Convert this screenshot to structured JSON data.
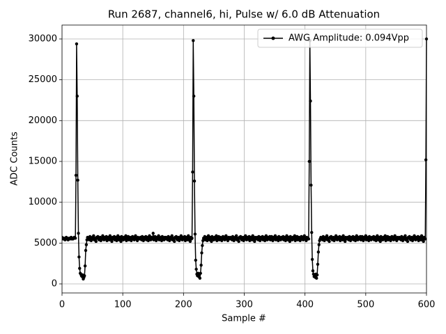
{
  "chart_data": {
    "type": "line",
    "title": "Run 2687, channel6, hi, Pulse w/ 6.0 dB Attenuation",
    "xlabel": "Sample #",
    "ylabel": "ADC Counts",
    "xlim": [
      0,
      600
    ],
    "ylim": [
      -1108,
      31704
    ],
    "xticks": [
      0,
      100,
      200,
      300,
      400,
      500,
      600
    ],
    "yticks": [
      0,
      5000,
      10000,
      15000,
      20000,
      25000,
      30000
    ],
    "grid": true,
    "legend": "upper right",
    "x": [
      0,
      1,
      2,
      3,
      4,
      5,
      6,
      7,
      8,
      9,
      10,
      11,
      12,
      13,
      14,
      15,
      16,
      17,
      18,
      19,
      20,
      21,
      22,
      23,
      24,
      25,
      26,
      27,
      28,
      29,
      30,
      31,
      32,
      33,
      34,
      35,
      36,
      37,
      38,
      39,
      40,
      41,
      42,
      43,
      44,
      45,
      46,
      47,
      48,
      49,
      50,
      51,
      52,
      53,
      54,
      55,
      56,
      57,
      58,
      59,
      60,
      61,
      62,
      63,
      64,
      65,
      66,
      67,
      68,
      69,
      70,
      71,
      72,
      73,
      74,
      75,
      76,
      77,
      78,
      79,
      80,
      81,
      82,
      83,
      84,
      85,
      86,
      87,
      88,
      89,
      90,
      91,
      92,
      93,
      94,
      95,
      96,
      97,
      98,
      99,
      100,
      101,
      102,
      103,
      104,
      105,
      106,
      107,
      108,
      109,
      110,
      111,
      112,
      113,
      114,
      115,
      116,
      117,
      118,
      119,
      120,
      121,
      122,
      123,
      124,
      125,
      126,
      127,
      128,
      129,
      130,
      131,
      132,
      133,
      134,
      135,
      136,
      137,
      138,
      139,
      140,
      141,
      142,
      143,
      144,
      145,
      146,
      147,
      148,
      149,
      150,
      151,
      152,
      153,
      154,
      155,
      156,
      157,
      158,
      159,
      160,
      161,
      162,
      163,
      164,
      165,
      166,
      167,
      168,
      169,
      170,
      171,
      172,
      173,
      174,
      175,
      176,
      177,
      178,
      179,
      180,
      181,
      182,
      183,
      184,
      185,
      186,
      187,
      188,
      189,
      190,
      191,
      192,
      193,
      194,
      195,
      196,
      197,
      198,
      199,
      200,
      201,
      202,
      203,
      204,
      205,
      206,
      207,
      208,
      209,
      210,
      211,
      212,
      213,
      214,
      215,
      216,
      217,
      218,
      219,
      220,
      221,
      222,
      223,
      224,
      225,
      226,
      227,
      228,
      229,
      230,
      231,
      232,
      233,
      234,
      235,
      236,
      237,
      238,
      239,
      240,
      241,
      242,
      243,
      244,
      245,
      246,
      247,
      248,
      249,
      250,
      251,
      252,
      253,
      254,
      255,
      256,
      257,
      258,
      259,
      260,
      261,
      262,
      263,
      264,
      265,
      266,
      267,
      268,
      269,
      270,
      271,
      272,
      273,
      274,
      275,
      276,
      277,
      278,
      279,
      280,
      281,
      282,
      283,
      284,
      285,
      286,
      287,
      288,
      289,
      290,
      291,
      292,
      293,
      294,
      295,
      296,
      297,
      298,
      299,
      300,
      301,
      302,
      303,
      304,
      305,
      306,
      307,
      308,
      309,
      310,
      311,
      312,
      313,
      314,
      315,
      316,
      317,
      318,
      319,
      320,
      321,
      322,
      323,
      324,
      325,
      326,
      327,
      328,
      329,
      330,
      331,
      332,
      333,
      334,
      335,
      336,
      337,
      338,
      339,
      340,
      341,
      342,
      343,
      344,
      345,
      346,
      347,
      348,
      349,
      350,
      351,
      352,
      353,
      354,
      355,
      356,
      357,
      358,
      359,
      360,
      361,
      362,
      363,
      364,
      365,
      366,
      367,
      368,
      369,
      370,
      371,
      372,
      373,
      374,
      375,
      376,
      377,
      378,
      379,
      380,
      381,
      382,
      383,
      384,
      385,
      386,
      387,
      388,
      389,
      390,
      391,
      392,
      393,
      394,
      395,
      396,
      397,
      398,
      399,
      400,
      401,
      402,
      403,
      404,
      405,
      406,
      407,
      408,
      409,
      410,
      411,
      412,
      413,
      414,
      415,
      416,
      417,
      418,
      419,
      420,
      421,
      422,
      423,
      424,
      425,
      426,
      427,
      428,
      429,
      430,
      431,
      432,
      433,
      434,
      435,
      436,
      437,
      438,
      439,
      440,
      441,
      442,
      443,
      444,
      445,
      446,
      447,
      448,
      449,
      450,
      451,
      452,
      453,
      454,
      455,
      456,
      457,
      458,
      459,
      460,
      461,
      462,
      463,
      464,
      465,
      466,
      467,
      468,
      469,
      470,
      471,
      472,
      473,
      474,
      475,
      476,
      477,
      478,
      479,
      480,
      481,
      482,
      483,
      484,
      485,
      486,
      487,
      488,
      489,
      490,
      491,
      492,
      493,
      494,
      495,
      496,
      497,
      498,
      499,
      500,
      501,
      502,
      503,
      504,
      505,
      506,
      507,
      508,
      509,
      510,
      511,
      512,
      513,
      514,
      515,
      516,
      517,
      518,
      519,
      520,
      521,
      522,
      523,
      524,
      525,
      526,
      527,
      528,
      529,
      530,
      531,
      532,
      533,
      534,
      535,
      536,
      537,
      538,
      539,
      540,
      541,
      542,
      543,
      544,
      545,
      546,
      547,
      548,
      549,
      550,
      551,
      552,
      553,
      554,
      555,
      556,
      557,
      558,
      559,
      560,
      561,
      562,
      563,
      564,
      565,
      566,
      567,
      568,
      569,
      570,
      571,
      572,
      573,
      574,
      575,
      576,
      577,
      578,
      579,
      580,
      581,
      582,
      583,
      584,
      585,
      586,
      587,
      588,
      589,
      590,
      591,
      592,
      593,
      594,
      595,
      596,
      597,
      598,
      599,
      600
    ],
    "series": [
      {
        "name": "AWG Amplitude: 0.094Vpp",
        "color": "#000000",
        "values": [
          5700,
          5600,
          5500,
          5600,
          5500,
          5400,
          5600,
          5700,
          5500,
          5600,
          5400,
          5500,
          5600,
          5500,
          5600,
          5700,
          5500,
          5600,
          5500,
          5600,
          5700,
          5600,
          5600,
          13300,
          29400,
          23000,
          12700,
          6200,
          3300,
          1900,
          1300,
          1200,
          1000,
          900,
          1100,
          600,
          800,
          1000,
          2200,
          4100,
          4800,
          5400,
          5700,
          5500,
          5600,
          5400,
          5800,
          5500,
          5300,
          5600,
          5700,
          5500,
          5900,
          5400,
          5600,
          5500,
          5200,
          5700,
          5600,
          5800,
          5500,
          5400,
          5600,
          5700,
          5300,
          5600,
          5500,
          5900,
          5600,
          5400,
          5700,
          5500,
          5600,
          5800,
          5300,
          5500,
          5700,
          5600,
          5400,
          5900,
          5500,
          5600,
          5200,
          5700,
          5500,
          5600,
          5800,
          5400,
          5500,
          5700,
          5300,
          5600,
          5900,
          5500,
          5400,
          5700,
          5600,
          5200,
          5800,
          5500,
          5600,
          5400,
          5700,
          5600,
          5500,
          5900,
          5300,
          5600,
          5500,
          5800,
          5400,
          5600,
          5700,
          5500,
          5300,
          5600,
          5800,
          5500,
          5700,
          5400,
          5600,
          5900,
          5500,
          5600,
          5300,
          5700,
          5500,
          5600,
          5500,
          5700,
          5600,
          5400,
          5800,
          5500,
          5300,
          5700,
          5600,
          5500,
          5800,
          5400,
          5600,
          5700,
          5300,
          5500,
          5900,
          5600,
          5400,
          5700,
          5500,
          5600,
          6200,
          5400,
          5500,
          5800,
          5600,
          5300,
          5700,
          5500,
          5600,
          5900,
          5400,
          5600,
          5500,
          5700,
          5300,
          5800,
          5600,
          5500,
          5400,
          5700,
          5600,
          5700,
          5500,
          5600,
          5400,
          5800,
          5500,
          5300,
          5600,
          5700,
          5500,
          5900,
          5400,
          5600,
          5500,
          5200,
          5700,
          5600,
          5800,
          5500,
          5400,
          5600,
          5700,
          5300,
          5600,
          5500,
          5900,
          5600,
          5400,
          5700,
          5500,
          5600,
          5800,
          5300,
          5500,
          5700,
          5600,
          5400,
          5900,
          5500,
          5600,
          5200,
          5700,
          5500,
          5600,
          13700,
          29800,
          23000,
          12600,
          6100,
          2900,
          1800,
          1200,
          1000,
          1300,
          900,
          1200,
          700,
          1300,
          2300,
          3800,
          4700,
          5300,
          5600,
          5600,
          5800,
          5400,
          5500,
          5700,
          5300,
          5600,
          5900,
          5500,
          5400,
          5700,
          5600,
          5200,
          5800,
          5500,
          5600,
          5400,
          5700,
          5600,
          5500,
          5900,
          5300,
          5600,
          5500,
          5800,
          5400,
          5600,
          5700,
          5500,
          5300,
          5600,
          5800,
          5500,
          5700,
          5400,
          5600,
          5900,
          5500,
          5600,
          5300,
          5700,
          5500,
          5600,
          5700,
          5500,
          5600,
          5400,
          5800,
          5500,
          5300,
          5600,
          5700,
          5500,
          5900,
          5400,
          5600,
          5500,
          5200,
          5700,
          5600,
          5800,
          5500,
          5400,
          5600,
          5700,
          5300,
          5600,
          5500,
          5900,
          5600,
          5400,
          5700,
          5500,
          5600,
          5800,
          5300,
          5500,
          5700,
          5600,
          5400,
          5900,
          5500,
          5600,
          5200,
          5700,
          5500,
          5500,
          5700,
          5600,
          5400,
          5800,
          5500,
          5300,
          5700,
          5600,
          5500,
          5800,
          5400,
          5600,
          5700,
          5300,
          5500,
          5900,
          5600,
          5400,
          5700,
          5500,
          5600,
          5800,
          5400,
          5500,
          5800,
          5600,
          5300,
          5700,
          5500,
          5600,
          5900,
          5400,
          5600,
          5500,
          5700,
          5300,
          5800,
          5600,
          5500,
          5400,
          5700,
          5600,
          5600,
          5800,
          5400,
          5500,
          5700,
          5300,
          5600,
          5900,
          5500,
          5400,
          5700,
          5600,
          5200,
          5800,
          5500,
          5600,
          5400,
          5700,
          5600,
          5500,
          5900,
          5300,
          5600,
          5500,
          5800,
          5400,
          5600,
          5700,
          5500,
          5300,
          5600,
          5800,
          5500,
          5700,
          5400,
          5600,
          5900,
          5500,
          5600,
          5300,
          5700,
          5500,
          5600,
          5500,
          15000,
          29800,
          22400,
          12100,
          6300,
          3000,
          1600,
          1200,
          900,
          1100,
          800,
          1200,
          700,
          1100,
          2400,
          3900,
          4800,
          5300,
          5500,
          5700,
          5500,
          5600,
          5400,
          5800,
          5500,
          5300,
          5600,
          5700,
          5500,
          5900,
          5400,
          5600,
          5500,
          5200,
          5700,
          5600,
          5800,
          5500,
          5400,
          5600,
          5700,
          5300,
          5600,
          5500,
          5900,
          5600,
          5400,
          5700,
          5500,
          5600,
          5800,
          5300,
          5500,
          5700,
          5600,
          5400,
          5900,
          5500,
          5600,
          5200,
          5700,
          5500,
          5500,
          5700,
          5600,
          5400,
          5800,
          5500,
          5300,
          5700,
          5600,
          5500,
          5800,
          5400,
          5600,
          5700,
          5300,
          5500,
          5900,
          5600,
          5400,
          5700,
          5500,
          5600,
          5800,
          5400,
          5500,
          5800,
          5600,
          5300,
          5700,
          5500,
          5600,
          5900,
          5400,
          5600,
          5500,
          5700,
          5300,
          5800,
          5600,
          5500,
          5400,
          5700,
          5600,
          5600,
          5800,
          5400,
          5500,
          5700,
          5300,
          5600,
          5900,
          5500,
          5400,
          5700,
          5600,
          5200,
          5800,
          5500,
          5600,
          5400,
          5700,
          5600,
          5500,
          5900,
          5300,
          5600,
          5500,
          5800,
          5400,
          5600,
          5700,
          5500,
          5300,
          5600,
          5800,
          5500,
          5700,
          5400,
          5600,
          5900,
          5500,
          5600,
          5300,
          5700,
          5500,
          5600,
          5700,
          5500,
          5600,
          5400,
          5800,
          5500,
          5300,
          5600,
          5700,
          5500,
          5900,
          5400,
          5600,
          5500,
          5200,
          5700,
          5600,
          5800,
          5500,
          5400,
          5600,
          5700,
          5300,
          5600,
          5500,
          5900,
          5600,
          5400,
          5700,
          5500,
          5600,
          5800,
          5300,
          5500,
          5700,
          5600,
          5400,
          5900,
          5500,
          5600,
          5200,
          5700,
          5500,
          5500,
          15200,
          30000
        ]
      }
    ]
  }
}
